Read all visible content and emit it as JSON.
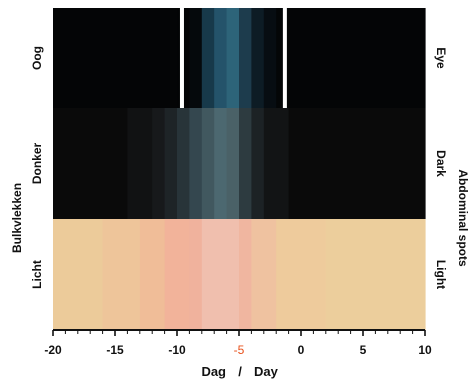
{
  "chart_data": {
    "type": "heatmap",
    "x_axis": {
      "label_left": "Dag",
      "separator": "/",
      "label_right": "Day",
      "min": -20,
      "max": 10,
      "ticks": [
        {
          "value": -20,
          "label": "-20"
        },
        {
          "value": -15,
          "label": "-15"
        },
        {
          "value": -10,
          "label": "-10"
        },
        {
          "value": -5,
          "label": "-5",
          "highlight": true
        },
        {
          "value": 0,
          "label": "0"
        },
        {
          "value": 5,
          "label": "5"
        },
        {
          "value": 10,
          "label": "10"
        }
      ],
      "minor_tick_step": 1,
      "highlight_color": "#e8501a"
    },
    "rows": [
      {
        "label_nl": "Oog",
        "label_en": "Eye",
        "bands": [
          {
            "from": -20,
            "to": -10,
            "color": "#040506"
          },
          {
            "from": -10,
            "to": -9,
            "color": "#030405"
          },
          {
            "from": -9,
            "to": -8,
            "color": "#05090c"
          },
          {
            "from": -8,
            "to": -7,
            "color": "#17394a"
          },
          {
            "from": -7,
            "to": -6,
            "color": "#24536a"
          },
          {
            "from": -6,
            "to": -5,
            "color": "#2d6479"
          },
          {
            "from": -5,
            "to": -4,
            "color": "#1d3c4d"
          },
          {
            "from": -4,
            "to": -3,
            "color": "#0d1c25"
          },
          {
            "from": -3,
            "to": -2,
            "color": "#070d12"
          },
          {
            "from": -2,
            "to": -1,
            "color": "#040607"
          },
          {
            "from": -1,
            "to": 10,
            "color": "#040506"
          }
        ],
        "markers": [
          -9.6,
          -1.3
        ],
        "marker_color": "#ffffff"
      },
      {
        "label_nl": "Donker",
        "label_en": "Dark",
        "bands": [
          {
            "from": -20,
            "to": -14,
            "color": "#0a0a0a"
          },
          {
            "from": -14,
            "to": -12,
            "color": "#111213"
          },
          {
            "from": -12,
            "to": -11,
            "color": "#17191b"
          },
          {
            "from": -11,
            "to": -10,
            "color": "#1e2427"
          },
          {
            "from": -10,
            "to": -9,
            "color": "#283439"
          },
          {
            "from": -9,
            "to": -8,
            "color": "#34474f"
          },
          {
            "from": -8,
            "to": -7,
            "color": "#41585f"
          },
          {
            "from": -7,
            "to": -6,
            "color": "#4c6870"
          },
          {
            "from": -6,
            "to": -5,
            "color": "#4a6167"
          },
          {
            "from": -5,
            "to": -4,
            "color": "#2d3b40"
          },
          {
            "from": -4,
            "to": -3,
            "color": "#1c2225"
          },
          {
            "from": -3,
            "to": -1,
            "color": "#121415"
          },
          {
            "from": -1,
            "to": 10,
            "color": "#0a0a0a"
          }
        ]
      },
      {
        "label_nl": "Licht",
        "label_en": "Light",
        "bands": [
          {
            "from": -20,
            "to": -16,
            "color": "#eccb9a"
          },
          {
            "from": -16,
            "to": -13,
            "color": "#eec59a"
          },
          {
            "from": -13,
            "to": -11,
            "color": "#f0bd98"
          },
          {
            "from": -11,
            "to": -9,
            "color": "#f2b39a"
          },
          {
            "from": -9,
            "to": -8,
            "color": "#f0b29d"
          },
          {
            "from": -8,
            "to": -5,
            "color": "#f0bfae"
          },
          {
            "from": -5,
            "to": -4,
            "color": "#f0b6a0"
          },
          {
            "from": -4,
            "to": -2,
            "color": "#efc2a0"
          },
          {
            "from": -2,
            "to": 2,
            "color": "#eecb9c"
          },
          {
            "from": 2,
            "to": 10,
            "color": "#ecce9c"
          }
        ]
      }
    ],
    "group_label_nl": "Bulkvlekken",
    "group_label_en": "Abdominal spots"
  }
}
